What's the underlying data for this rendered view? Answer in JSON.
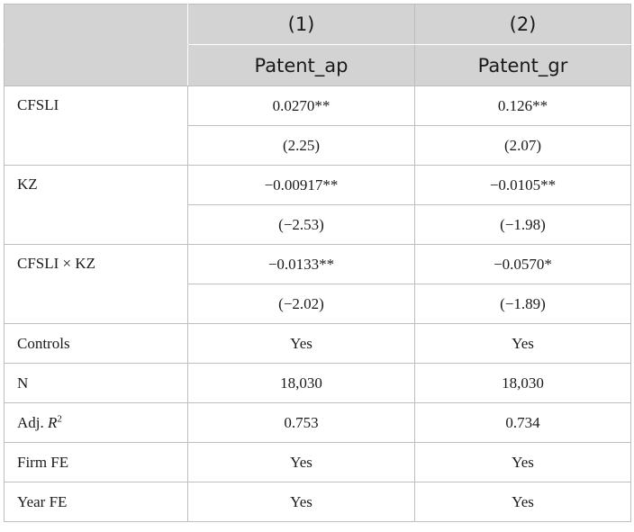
{
  "header": {
    "col1_number": "(1)",
    "col2_number": "(2)",
    "col1_name": "Patent_ap",
    "col2_name": "Patent_gr"
  },
  "rows": {
    "cfsli": {
      "label": "CFSLI",
      "coef1": "0.0270**",
      "coef2": "0.126**",
      "t1": "(2.25)",
      "t2": "(2.07)"
    },
    "kz": {
      "label": "KZ",
      "coef1": "−0.00917**",
      "coef2": "−0.0105**",
      "t1": "(−2.53)",
      "t2": "(−1.98)"
    },
    "interaction": {
      "label": "CFSLI × KZ",
      "coef1": "−0.0133**",
      "coef2": "−0.0570*",
      "t1": "(−2.02)",
      "t2": "(−1.89)"
    },
    "controls": {
      "label": "Controls",
      "v1": "Yes",
      "v2": "Yes"
    },
    "n": {
      "label": "N",
      "v1": "18,030",
      "v2": "18,030"
    },
    "adj_r2": {
      "label_prefix": "Adj. ",
      "label_var": "R",
      "label_sup": "2",
      "v1": "0.753",
      "v2": "0.734"
    },
    "firm_fe": {
      "label": "Firm FE",
      "v1": "Yes",
      "v2": "Yes"
    },
    "year_fe": {
      "label": "Year FE",
      "v1": "Yes",
      "v2": "Yes"
    }
  }
}
